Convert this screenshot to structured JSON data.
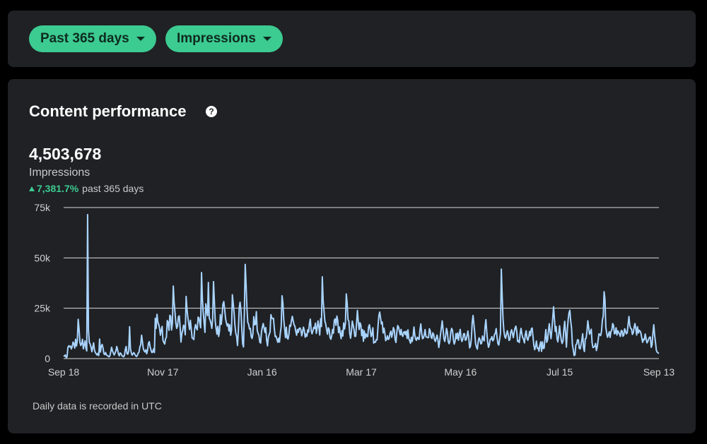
{
  "filters": {
    "range_label": "Past 365 days",
    "metric_label": "Impressions"
  },
  "card": {
    "title": "Content performance",
    "help_glyph": "?",
    "total": "4,503,678",
    "metric_name": "Impressions",
    "change_pct": "7,381.7%",
    "change_period": "past 365 days",
    "footnote": "Daily data is recorded in UTC"
  },
  "colors": {
    "accent": "#3ccb91",
    "line": "#a9d4ff",
    "card_bg": "#1f2124",
    "page_bg": "#000000"
  },
  "chart_data": {
    "type": "line",
    "series": [
      {
        "values": [
          1500,
          1200,
          1800,
          500,
          900,
          5500,
          6400,
          5800,
          6200,
          4800,
          6000,
          8200,
          7400,
          5200,
          9600,
          6200,
          9000,
          19500,
          14800,
          8000,
          6500,
          7400,
          9600,
          4800,
          6800,
          8800,
          5200,
          3800,
          71500,
          14000,
          8000,
          7200,
          5600,
          3400,
          5600,
          7800,
          4200,
          3000,
          2400,
          1800,
          2600,
          1500,
          9700,
          3200,
          6200,
          7000,
          5200,
          2400,
          2000,
          3000,
          1800,
          1500,
          1200,
          900,
          1400,
          3300,
          5600,
          3800,
          2800,
          1800,
          2700,
          3800,
          6000,
          4400,
          2200,
          1400,
          2800,
          2400,
          1500,
          1200,
          900,
          1600,
          4600,
          6000,
          2400,
          2200,
          3800,
          15800,
          4900,
          2900,
          1700,
          2400,
          3000,
          2200,
          1500,
          1000,
          1500,
          2700,
          3200,
          5800,
          6800,
          11600,
          8400,
          4900,
          3800,
          3300,
          4400,
          2400,
          4200,
          7600,
          8400,
          5800,
          4200,
          3000,
          3200,
          4800,
          3000,
          20000,
          15000,
          22000,
          18000,
          17000,
          15000,
          11600,
          14200,
          16000,
          9000,
          8000,
          7200,
          9800,
          10600,
          18900,
          18000,
          14000,
          21500,
          21000,
          14200,
          17600,
          36000,
          28000,
          23000,
          17800,
          15000,
          16200,
          20800,
          21200,
          15600,
          8200,
          12400,
          14000,
          16600,
          16000,
          11800,
          30900,
          24700,
          20400,
          17500,
          14400,
          19000,
          14800,
          10200,
          10000,
          9400,
          14800,
          16900,
          15200,
          14300,
          20600,
          20200,
          17600,
          15300,
          42700,
          29600,
          22800,
          17800,
          13000,
          27200,
          23400,
          21300,
          37800,
          20200,
          19100,
          17500,
          15000,
          20000,
          38200,
          28300,
          18500,
          15000,
          12100,
          16000,
          11000,
          13700,
          21800,
          17000,
          21300,
          27000,
          28300,
          24600,
          20000,
          17800,
          16200,
          17300,
          13700,
          16800,
          11600,
          14000,
          31700,
          27300,
          22700,
          16600,
          12600,
          11000,
          6500,
          14000,
          25000,
          28000,
          24000,
          15000,
          7500,
          5800,
          23000,
          46800,
          37100,
          25100,
          18000,
          17000,
          14700,
          15000,
          11000,
          10000,
          12400,
          20800,
          16800,
          17000,
          23300,
          14100,
          12500,
          11600,
          8200,
          7700,
          13300,
          15700,
          17400,
          15300,
          13000,
          15400,
          9200,
          6300,
          10500,
          12000,
          13200,
          21800,
          20200,
          19800,
          20000,
          14800,
          10900,
          11100,
          9600,
          8100,
          10100,
          8200,
          12700,
          15900,
          31200,
          27600,
          19300,
          14900,
          10400,
          15600,
          10200,
          9700,
          12100,
          16600,
          16000,
          18900,
          21000,
          18700,
          16800,
          16100,
          13600,
          11600,
          14500,
          13000,
          14900,
          15200,
          14200,
          11300,
          13300,
          15600,
          14000,
          10600,
          12200,
          11100,
          14300,
          13200,
          17300,
          19600,
          14000,
          12300,
          13700,
          15500,
          14900,
          17600,
          12500,
          15200,
          18700,
          15800,
          11700,
          19800,
          15900,
          40600,
          28800,
          23500,
          18600,
          17200,
          14400,
          12100,
          15300,
          14600,
          10500,
          9600,
          11400,
          14500,
          12600,
          19000,
          19700,
          16500,
          21100,
          19000,
          12900,
          15700,
          12300,
          9900,
          13900,
          11200,
          17700,
          14700,
          17600,
          32100,
          27700,
          19400,
          18600,
          12700,
          10100,
          13600,
          18600,
          16700,
          14400,
          11000,
          11100,
          17600,
          23900,
          18300,
          14400,
          17800,
          16700,
          11400,
          14400,
          8600,
          13800,
          10100,
          12300,
          11000,
          10900,
          15700,
          16800,
          14300,
          10900,
          11900,
          15300,
          7700,
          8300,
          8100,
          9400,
          9300,
          15800,
          21200,
          23100,
          20200,
          17200,
          18100,
          12700,
          15100,
          12700,
          8900,
          9600,
          11300,
          9500,
          9900,
          12400,
          13600,
          10600,
          12600,
          15400,
          14200,
          9500,
          8000,
          13000,
          16400,
          15700,
          13700,
          11800,
          14500,
          11800,
          11000,
          13100,
          13400,
          11900,
          13600,
          10000,
          14300,
          9900,
          8900,
          7600,
          10600,
          8500,
          11100,
          15700,
          11700,
          9600,
          9100,
          10600,
          10000,
          9500,
          14200,
          17200,
          12700,
          9900,
          10200,
          11800,
          14400,
          10800,
          10700,
          10400,
          10400,
          14800,
          13800,
          10600,
          10000,
          12800,
          12000,
          9400,
          8500,
          10100,
          11700,
          9200,
          5500,
          8300,
          12000,
          15200,
          18700,
          14400,
          9800,
          8500,
          11300,
          15000,
          13200,
          8500,
          7400,
          8700,
          13200,
          15000,
          14000,
          9500,
          7200,
          8500,
          12400,
          9900,
          12700,
          9100,
          12200,
          14500,
          10200,
          8500,
          9600,
          12300,
          12400,
          9100,
          9400,
          11400,
          13700,
          10200,
          5300,
          6300,
          9800,
          17900,
          21400,
          17000,
          12700,
          7300,
          5700,
          4700,
          8400,
          10300,
          9500,
          7300,
          7600,
          11200,
          9400,
          8800,
          15700,
          19300,
          13300,
          8300,
          5600,
          6800,
          9500,
          9600,
          10900,
          8800,
          9400,
          12000,
          12500,
          14900,
          10600,
          7500,
          6700,
          9500,
          12600,
          44400,
          31100,
          19600,
          13700,
          11000,
          10100,
          12000,
          13800,
          12000,
          9000,
          9400,
          13100,
          14300,
          12400,
          10400,
          13100,
          15100,
          16100,
          13600,
          8500,
          8900,
          8000,
          12400,
          15000,
          12200,
          10400,
          9500,
          7800,
          12000,
          13800,
          10100,
          9100,
          10800,
          13500,
          11300,
          14700,
          15200,
          10800,
          6500,
          4400,
          6200,
          8700,
          5100,
          5300,
          3700,
          6700,
          8300,
          3600,
          8300,
          5000,
          5200,
          10100,
          14400,
          8100,
          9200,
          13700,
          17300,
          13100,
          9900,
          14300,
          20000,
          25700,
          19500,
          13500,
          15900,
          10000,
          8300,
          11800,
          16300,
          12200,
          9100,
          7500,
          8800,
          14300,
          18500,
          12800,
          5700,
          13900,
          19200,
          22700,
          24000,
          18600,
          15200,
          6900,
          4400,
          1500,
          1800,
          6800,
          7300,
          9400,
          9200,
          5100,
          4800,
          6700,
          9200,
          12300,
          5300,
          3500,
          9800,
          10100,
          13600,
          18800,
          15300,
          12100,
          13000,
          14600,
          7800,
          5500,
          5700,
          6000,
          7500,
          4000,
          5800,
          9100,
          12300,
          12000,
          11400,
          13700,
          19100,
          21200,
          33200,
          29400,
          15600,
          12700,
          10600,
          11800,
          13300,
          10500,
          13500,
          14200,
          17400,
          16500,
          12300,
          12600,
          15300,
          11700,
          13800,
          12900,
          12200,
          11000,
          13900,
          13800,
          11100,
          11700,
          14800,
          13600,
          12300,
          12800,
          17000,
          20900,
          16400,
          15000,
          14700,
          12000,
          12700,
          15400,
          17400,
          15000,
          11700,
          15800,
          12700,
          14100,
          13600,
          12600,
          10200,
          8100,
          9700,
          9300,
          12200,
          10000,
          7800,
          8500,
          9700,
          10600,
          10700,
          5600,
          6800,
          12600,
          16800,
          11600,
          8000,
          4100,
          3200,
          2800,
          2600
        ]
      }
    ],
    "x_tick_labels": [
      "Sep 18",
      "Nov 17",
      "Jan 16",
      "Mar 17",
      "May 16",
      "Jul 15",
      "Sep 13"
    ],
    "y_tick_labels": [
      "0",
      "25k",
      "50k",
      "75k"
    ],
    "y_ticks": [
      0,
      25000,
      50000,
      75000
    ],
    "ylim": [
      0,
      75000
    ],
    "grid": true
  }
}
